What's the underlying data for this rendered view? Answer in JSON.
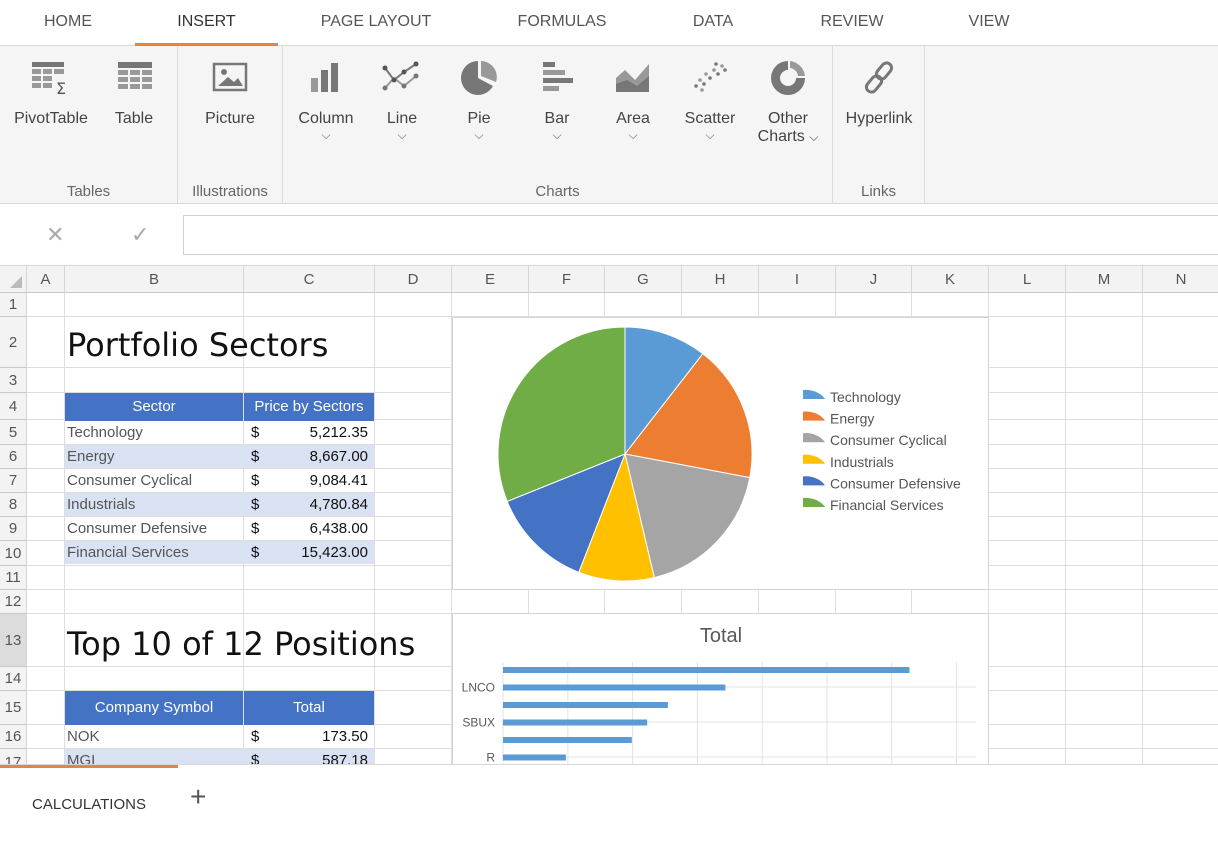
{
  "tabs": [
    "HOME",
    "INSERT",
    "PAGE LAYOUT",
    "FORMULAS",
    "DATA",
    "REVIEW",
    "VIEW"
  ],
  "active_tab": "INSERT",
  "ribbon": {
    "tables_group": {
      "label": "Tables",
      "pivot": "PivotTable",
      "table": "Table"
    },
    "illustrations_group": {
      "label": "Illustrations",
      "picture": "Picture"
    },
    "charts_group": {
      "label": "Charts",
      "column": "Column",
      "line": "Line",
      "pie": "Pie",
      "bar": "Bar",
      "area": "Area",
      "scatter": "Scatter",
      "other_1": "Other",
      "other_2": "Charts"
    },
    "links_group": {
      "label": "Links",
      "hyperlink": "Hyperlink"
    }
  },
  "formula_bar": {
    "cancel": "✕",
    "enter": "✓",
    "value": ""
  },
  "columns": [
    "A",
    "B",
    "C",
    "D",
    "E",
    "F",
    "G",
    "H",
    "I",
    "J",
    "K",
    "L",
    "M",
    "N"
  ],
  "rows": [
    "1",
    "2",
    "3",
    "4",
    "5",
    "6",
    "7",
    "8",
    "9",
    "10",
    "11",
    "12",
    "13",
    "14",
    "15",
    "16",
    "17"
  ],
  "sheet": {
    "portfolio_title": "Portfolio Sectors",
    "sector_header": "Sector",
    "price_header": "Price by Sectors",
    "sectors": [
      {
        "name": "Technology",
        "cur": "$",
        "amount": "5,212.35"
      },
      {
        "name": "Energy",
        "cur": "$",
        "amount": "8,667.00"
      },
      {
        "name": "Consumer Cyclical",
        "cur": "$",
        "amount": "9,084.41"
      },
      {
        "name": "Industrials",
        "cur": "$",
        "amount": "4,780.84"
      },
      {
        "name": "Consumer Defensive",
        "cur": "$",
        "amount": "6,438.00"
      },
      {
        "name": "Financial Services",
        "cur": "$",
        "amount": "15,423.00"
      }
    ],
    "top_title": "Top 10 of 12 Positions",
    "symbol_header": "Company Symbol",
    "total_header": "Total",
    "positions": [
      {
        "name": "NOK",
        "cur": "$",
        "amount": "173.50"
      },
      {
        "name": "MGI",
        "cur": "$",
        "amount": "587.18"
      }
    ]
  },
  "chart_data": [
    {
      "type": "pie",
      "categories": [
        "Technology",
        "Energy",
        "Consumer Cyclical",
        "Industrials",
        "Consumer Defensive",
        "Financial Services"
      ],
      "values": [
        5212.35,
        8667.0,
        9084.41,
        4780.84,
        6438.0,
        15423.0
      ],
      "colors": [
        "#5b9bd5",
        "#ed7d31",
        "#a5a5a5",
        "#ffc000",
        "#4472c4",
        "#70ad47"
      ],
      "legend": "right"
    },
    {
      "type": "bar",
      "title": "Total",
      "categories": [
        "",
        "LNCO",
        "",
        "SBUX",
        "",
        "R"
      ],
      "values": [
        530,
        290,
        215,
        188,
        168,
        82
      ],
      "xlim": [
        0,
        560
      ],
      "grid": true,
      "color": "#5b9bd5"
    }
  ],
  "sheet_tabs": {
    "active": "CALCULATIONS",
    "add": "+"
  }
}
